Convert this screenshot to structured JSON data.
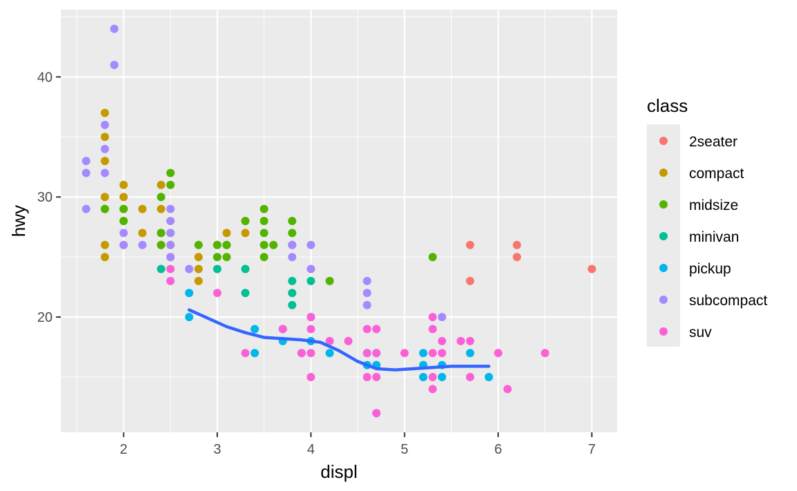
{
  "chart_data": {
    "type": "scatter",
    "title": "",
    "xlabel": "displ",
    "ylabel": "hwy",
    "xlim": [
      1.33,
      7.27
    ],
    "ylim": [
      10.4,
      45.6
    ],
    "x_ticks": [
      2,
      3,
      4,
      5,
      6,
      7
    ],
    "y_ticks": [
      20,
      30,
      40
    ],
    "grid": true,
    "legend": {
      "title": "class",
      "position": "right"
    },
    "series": [
      {
        "name": "2seater",
        "color": "#F8766D",
        "points": [
          [
            5.7,
            26
          ],
          [
            5.7,
            23
          ],
          [
            6.2,
            26
          ],
          [
            6.2,
            25
          ],
          [
            7.0,
            24
          ]
        ]
      },
      {
        "name": "compact",
        "color": "#C49A00",
        "points": [
          [
            1.8,
            37
          ],
          [
            1.8,
            35
          ],
          [
            1.8,
            33
          ],
          [
            1.8,
            30
          ],
          [
            1.8,
            29
          ],
          [
            1.8,
            26
          ],
          [
            1.8,
            25
          ],
          [
            2.0,
            31
          ],
          [
            2.0,
            30
          ],
          [
            2.0,
            29
          ],
          [
            2.0,
            28
          ],
          [
            2.0,
            26
          ],
          [
            2.2,
            29
          ],
          [
            2.2,
            27
          ],
          [
            2.4,
            31
          ],
          [
            2.4,
            29
          ],
          [
            2.4,
            27
          ],
          [
            2.4,
            26
          ],
          [
            2.5,
            27
          ],
          [
            2.5,
            26
          ],
          [
            2.5,
            25
          ],
          [
            2.8,
            25
          ],
          [
            2.8,
            24
          ],
          [
            2.8,
            23
          ],
          [
            3.0,
            26
          ],
          [
            3.1,
            27
          ],
          [
            3.1,
            26
          ],
          [
            3.3,
            28
          ],
          [
            3.3,
            27
          ]
        ]
      },
      {
        "name": "midsize",
        "color": "#53B400",
        "points": [
          [
            1.8,
            29
          ],
          [
            2.0,
            29
          ],
          [
            2.0,
            28
          ],
          [
            2.4,
            30
          ],
          [
            2.4,
            27
          ],
          [
            2.4,
            26
          ],
          [
            2.5,
            32
          ],
          [
            2.5,
            31
          ],
          [
            2.8,
            26
          ],
          [
            3.0,
            26
          ],
          [
            3.0,
            25
          ],
          [
            3.1,
            26
          ],
          [
            3.1,
            25
          ],
          [
            3.3,
            28
          ],
          [
            3.5,
            29
          ],
          [
            3.5,
            28
          ],
          [
            3.5,
            27
          ],
          [
            3.5,
            26
          ],
          [
            3.5,
            25
          ],
          [
            3.6,
            26
          ],
          [
            3.8,
            28
          ],
          [
            3.8,
            27
          ],
          [
            3.8,
            26
          ],
          [
            4.2,
            23
          ],
          [
            5.3,
            25
          ]
        ]
      },
      {
        "name": "minivan",
        "color": "#00C094",
        "points": [
          [
            2.4,
            24
          ],
          [
            3.0,
            24
          ],
          [
            3.3,
            24
          ],
          [
            3.3,
            22
          ],
          [
            3.8,
            23
          ],
          [
            3.8,
            22
          ],
          [
            3.8,
            21
          ],
          [
            4.0,
            23
          ]
        ]
      },
      {
        "name": "pickup",
        "color": "#00B6EB",
        "points": [
          [
            2.7,
            22
          ],
          [
            2.7,
            20
          ],
          [
            3.4,
            19
          ],
          [
            3.4,
            17
          ],
          [
            3.7,
            19
          ],
          [
            3.7,
            18
          ],
          [
            3.9,
            17
          ],
          [
            4.0,
            20
          ],
          [
            4.0,
            18
          ],
          [
            4.2,
            17
          ],
          [
            4.6,
            17
          ],
          [
            4.6,
            16
          ],
          [
            4.7,
            17
          ],
          [
            4.7,
            16
          ],
          [
            4.7,
            12
          ],
          [
            5.2,
            17
          ],
          [
            5.2,
            16
          ],
          [
            5.2,
            15
          ],
          [
            5.4,
            16
          ],
          [
            5.4,
            15
          ],
          [
            5.7,
            17
          ],
          [
            5.9,
            15
          ]
        ]
      },
      {
        "name": "subcompact",
        "color": "#A58AFF",
        "points": [
          [
            1.6,
            33
          ],
          [
            1.6,
            32
          ],
          [
            1.6,
            29
          ],
          [
            1.8,
            36
          ],
          [
            1.8,
            34
          ],
          [
            1.8,
            32
          ],
          [
            1.9,
            44
          ],
          [
            1.9,
            41
          ],
          [
            2.0,
            27
          ],
          [
            2.0,
            26
          ],
          [
            2.2,
            26
          ],
          [
            2.5,
            29
          ],
          [
            2.5,
            28
          ],
          [
            2.5,
            27
          ],
          [
            2.5,
            26
          ],
          [
            2.5,
            25
          ],
          [
            2.7,
            24
          ],
          [
            3.8,
            26
          ],
          [
            3.8,
            25
          ],
          [
            4.0,
            26
          ],
          [
            4.0,
            24
          ],
          [
            4.6,
            23
          ],
          [
            4.6,
            22
          ],
          [
            4.6,
            21
          ],
          [
            5.4,
            20
          ]
        ]
      },
      {
        "name": "suv",
        "color": "#FB61D7",
        "points": [
          [
            2.5,
            24
          ],
          [
            2.5,
            23
          ],
          [
            3.0,
            22
          ],
          [
            3.3,
            17
          ],
          [
            3.7,
            19
          ],
          [
            3.9,
            17
          ],
          [
            4.0,
            20
          ],
          [
            4.0,
            19
          ],
          [
            4.0,
            17
          ],
          [
            4.0,
            15
          ],
          [
            4.2,
            18
          ],
          [
            4.4,
            18
          ],
          [
            4.6,
            19
          ],
          [
            4.6,
            17
          ],
          [
            4.6,
            15
          ],
          [
            4.7,
            19
          ],
          [
            4.7,
            17
          ],
          [
            4.7,
            15
          ],
          [
            4.7,
            12
          ],
          [
            5.0,
            17
          ],
          [
            5.3,
            20
          ],
          [
            5.3,
            19
          ],
          [
            5.3,
            17
          ],
          [
            5.3,
            15
          ],
          [
            5.3,
            14
          ],
          [
            5.4,
            18
          ],
          [
            5.4,
            17
          ],
          [
            5.6,
            18
          ],
          [
            5.7,
            18
          ],
          [
            5.7,
            15
          ],
          [
            6.0,
            17
          ],
          [
            6.1,
            14
          ],
          [
            6.5,
            17
          ]
        ]
      }
    ],
    "smooth": {
      "color": "#3366FF",
      "points": [
        [
          2.7,
          20.6
        ],
        [
          2.9,
          19.9
        ],
        [
          3.1,
          19.2
        ],
        [
          3.3,
          18.7
        ],
        [
          3.5,
          18.3
        ],
        [
          3.7,
          18.2
        ],
        [
          3.9,
          18.1
        ],
        [
          4.1,
          17.9
        ],
        [
          4.3,
          17.2
        ],
        [
          4.5,
          16.3
        ],
        [
          4.7,
          15.7
        ],
        [
          4.9,
          15.6
        ],
        [
          5.1,
          15.7
        ],
        [
          5.3,
          15.8
        ],
        [
          5.5,
          15.9
        ],
        [
          5.7,
          15.9
        ],
        [
          5.9,
          15.9
        ]
      ]
    }
  }
}
